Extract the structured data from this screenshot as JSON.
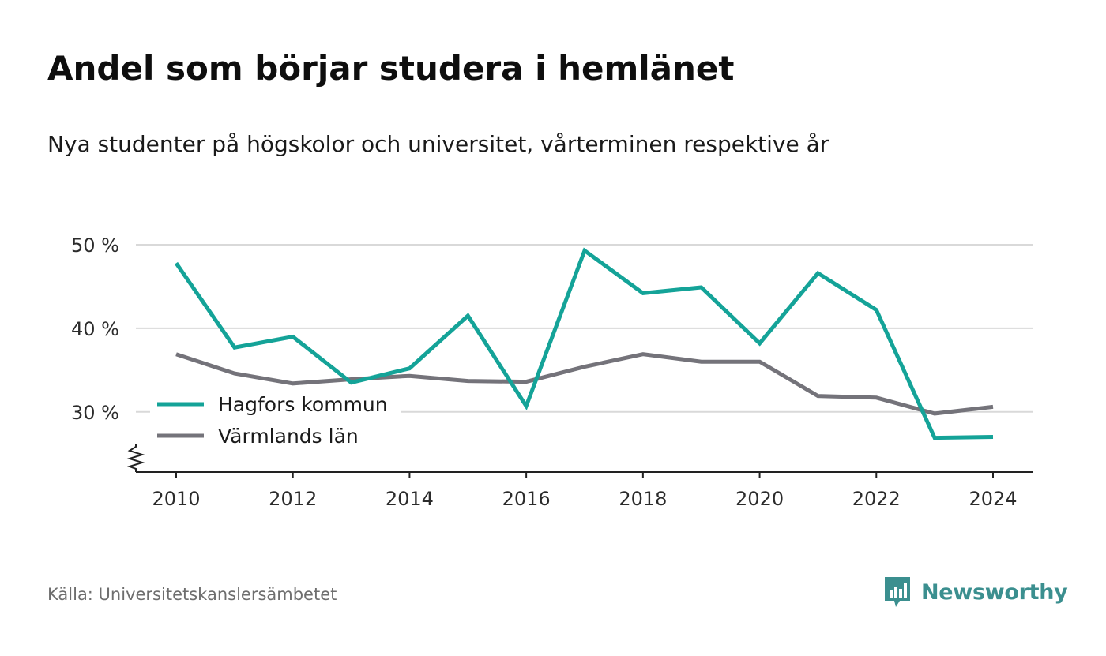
{
  "header": {
    "title": "Andel som börjar studera i hemlänet",
    "subtitle": "Nya studenter på högskolor och universitet, vårterminen respektive år"
  },
  "footer": {
    "source": "Källa: Universitetskanslersämbetet",
    "brand": "Newsworthy"
  },
  "colors": {
    "hagfors": "#14a398",
    "varmland": "#74737a",
    "grid": "#d9d9d9",
    "axis": "#222222",
    "brand": "#3b8f8f"
  },
  "chart_data": {
    "type": "line",
    "title": "Andel som börjar studera i hemlänet",
    "subtitle": "Nya studenter på högskolor och universitet, vårterminen respektive år",
    "xlabel": "",
    "ylabel": "",
    "x": [
      2010,
      2011,
      2012,
      2013,
      2014,
      2015,
      2016,
      2017,
      2018,
      2019,
      2020,
      2021,
      2022,
      2023,
      2024
    ],
    "x_ticks": [
      "2010",
      "2012",
      "2014",
      "2016",
      "2018",
      "2020",
      "2022",
      "2024"
    ],
    "y_ticks": [
      {
        "value": 30,
        "label": "30 %"
      },
      {
        "value": 40,
        "label": "40 %"
      },
      {
        "value": 50,
        "label": "50 %"
      }
    ],
    "ylim": [
      22.8,
      50
    ],
    "y_axis_break": true,
    "grid": true,
    "legend_position": "lower-left",
    "series": [
      {
        "name": "Hagfors kommun",
        "color": "#14a398",
        "values": [
          47.8,
          37.7,
          39.0,
          33.5,
          35.2,
          41.5,
          30.7,
          49.3,
          44.2,
          44.9,
          38.2,
          46.6,
          42.2,
          26.9,
          27.0
        ]
      },
      {
        "name": "Värmlands län",
        "color": "#74737a",
        "values": [
          36.9,
          34.6,
          33.4,
          33.9,
          34.3,
          33.7,
          33.6,
          35.4,
          36.9,
          36.0,
          36.0,
          31.9,
          31.7,
          29.8,
          30.6
        ]
      }
    ]
  }
}
